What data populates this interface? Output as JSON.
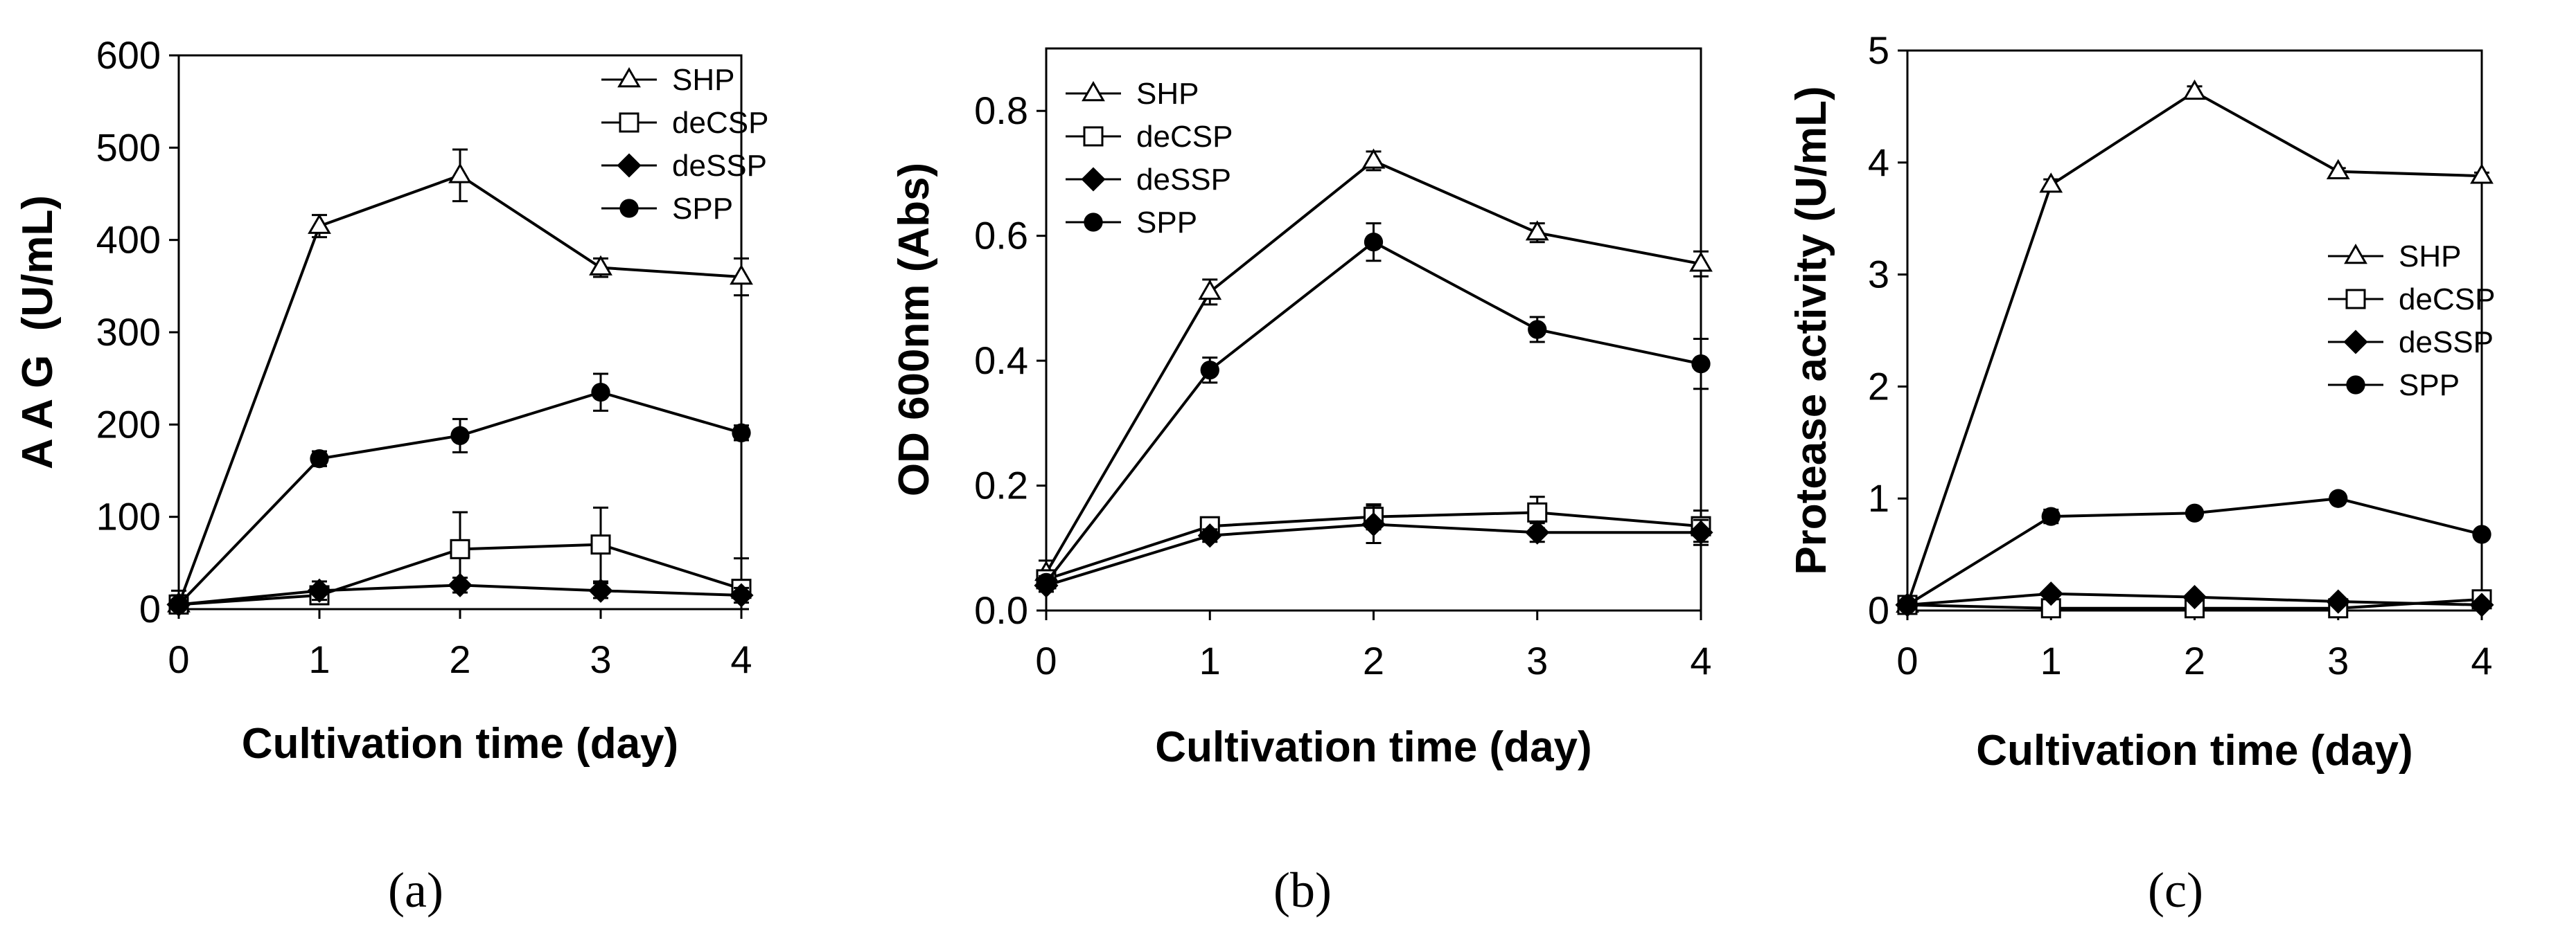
{
  "chart_data": [
    {
      "type": "line",
      "panel_label": "(a)",
      "ylabel": "A A G  (U/mL)",
      "xlabel": "Cultivation time (day)",
      "x": [
        0,
        1,
        2,
        3,
        4
      ],
      "xlim": [
        0,
        4
      ],
      "ylim": [
        0,
        600
      ],
      "yticks": [
        0,
        100,
        200,
        300,
        400,
        500,
        600
      ],
      "ytick_labels": [
        "0",
        "100",
        "200",
        "300",
        "400",
        "500",
        "600"
      ],
      "xtick_labels": [
        "0",
        "1",
        "2",
        "3",
        "4"
      ],
      "legend_position": "top-right",
      "series": [
        {
          "name": "SHP",
          "marker": "triangle-open",
          "values": [
            5,
            415,
            470,
            370,
            360
          ],
          "errors": [
            10,
            12,
            28,
            10,
            20
          ]
        },
        {
          "name": "deCSP",
          "marker": "square-open",
          "values": [
            5,
            15,
            65,
            70,
            22
          ],
          "errors": [
            15,
            8,
            40,
            40,
            33
          ]
        },
        {
          "name": "deSSP",
          "marker": "diamond-filled",
          "values": [
            5,
            20,
            26,
            20,
            15
          ],
          "errors": [
            5,
            10,
            8,
            8,
            8
          ]
        },
        {
          "name": "SPP",
          "marker": "circle-filled",
          "values": [
            5,
            163,
            188,
            235,
            191
          ],
          "errors": [
            5,
            8,
            18,
            20,
            8
          ]
        }
      ]
    },
    {
      "type": "line",
      "panel_label": "(b)",
      "ylabel": "OD 600nm (Abs)",
      "xlabel": "Cultivation time (day)",
      "x": [
        0,
        1,
        2,
        3,
        4
      ],
      "xlim": [
        0,
        4
      ],
      "ylim": [
        0,
        0.9
      ],
      "yticks": [
        0,
        0.2,
        0.4,
        0.6,
        0.8
      ],
      "ytick_labels": [
        "0.0",
        "0.2",
        "0.4",
        "0.6",
        "0.8"
      ],
      "xtick_labels": [
        "0",
        "1",
        "2",
        "3",
        "4"
      ],
      "legend_position": "top-left",
      "series": [
        {
          "name": "SHP",
          "marker": "triangle-open",
          "values": [
            0.06,
            0.51,
            0.72,
            0.605,
            0.555
          ],
          "errors": [
            0.02,
            0.02,
            0.015,
            0.015,
            0.02
          ]
        },
        {
          "name": "deCSP",
          "marker": "square-open",
          "values": [
            0.05,
            0.135,
            0.15,
            0.157,
            0.135
          ],
          "errors": [
            0.01,
            0.01,
            0.02,
            0.025,
            0.025
          ]
        },
        {
          "name": "deSSP",
          "marker": "diamond-filled",
          "values": [
            0.04,
            0.12,
            0.138,
            0.125,
            0.125
          ],
          "errors": [
            0.01,
            0.01,
            0.03,
            0.015,
            0.02
          ]
        },
        {
          "name": "SPP",
          "marker": "circle-filled",
          "values": [
            0.045,
            0.385,
            0.59,
            0.45,
            0.395
          ],
          "errors": [
            0.01,
            0.02,
            0.03,
            0.02,
            0.04
          ]
        }
      ]
    },
    {
      "type": "line",
      "panel_label": "(c)",
      "ylabel": "Protease activity (U/mL)",
      "xlabel": "Cultivation time (day)",
      "x": [
        0,
        1,
        2,
        3,
        4
      ],
      "xlim": [
        0,
        4
      ],
      "ylim": [
        0,
        5
      ],
      "yticks": [
        0,
        1,
        2,
        3,
        4,
        5
      ],
      "ytick_labels": [
        "0",
        "1",
        "2",
        "3",
        "4",
        "5"
      ],
      "xtick_labels": [
        "0",
        "1",
        "2",
        "3",
        "4"
      ],
      "legend_position": "center-right",
      "series": [
        {
          "name": "SHP",
          "marker": "triangle-open",
          "values": [
            0.05,
            3.8,
            4.63,
            3.92,
            3.88
          ],
          "errors": [
            0.02,
            0.05,
            0.05,
            0.03,
            0.03
          ]
        },
        {
          "name": "deCSP",
          "marker": "square-open",
          "values": [
            0.05,
            0.02,
            0.02,
            0.02,
            0.1
          ],
          "errors": [
            0.01,
            0.01,
            0.01,
            0.01,
            0.02
          ]
        },
        {
          "name": "deSSP",
          "marker": "diamond-filled",
          "values": [
            0.05,
            0.15,
            0.12,
            0.08,
            0.05
          ],
          "errors": [
            0.01,
            0.02,
            0.02,
            0.02,
            0.01
          ]
        },
        {
          "name": "SPP",
          "marker": "circle-filled",
          "values": [
            0.05,
            0.84,
            0.87,
            1.0,
            0.68
          ],
          "errors": [
            0.01,
            0.06,
            0.03,
            0.02,
            0.03
          ]
        }
      ]
    }
  ]
}
